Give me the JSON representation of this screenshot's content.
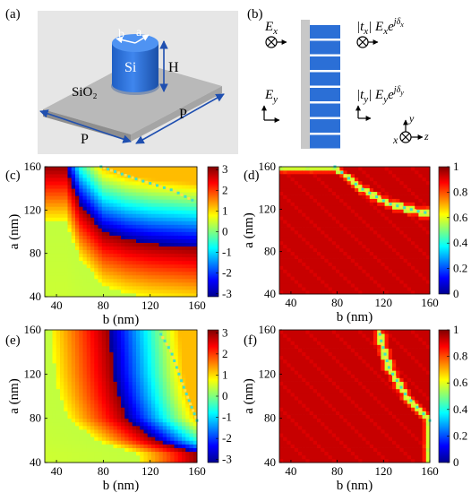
{
  "panels": {
    "a": {
      "label": "(a)",
      "text_b": "b",
      "text_a": "a",
      "text_si": "Si",
      "text_h": "H",
      "text_sio2": "SiO₂",
      "text_p1": "P",
      "text_p2": "P",
      "colors": {
        "substrate_top": "#b8b8b8",
        "substrate_side": "#9a9a9a",
        "pillar": "#2b6fd6",
        "background": "#e6e6e6"
      }
    },
    "b": {
      "label": "(b)",
      "ex": "E",
      "ex_sub": "x",
      "ey": "E",
      "ey_sub": "y",
      "tx": "|t",
      "tx_sub": "x",
      "tx_mid": "| E",
      "tx_mid_sub": "x",
      "tx_exp": "e",
      "tx_power": "jδ",
      "tx_power_sub": "x",
      "ty": "|t",
      "ty_sub": "y",
      "ty_mid": "| E",
      "ty_mid_sub": "y",
      "ty_exp": "e",
      "ty_power": "jδ",
      "ty_power_sub": "y",
      "axis_y": "y",
      "axis_x": "x",
      "axis_z": "z",
      "colors": {
        "slab": "#c8c8c8",
        "pillars": "#2b6fd6"
      }
    },
    "c": {
      "label": "(c)"
    },
    "d": {
      "label": "(d)"
    },
    "e": {
      "label": "(e)"
    },
    "f": {
      "label": "(f)"
    }
  },
  "chart_data": [
    {
      "panel": "c",
      "type": "heatmap",
      "quantity": "phase",
      "xlabel": "b (nm)",
      "ylabel": "a (nm)",
      "xlim": [
        30,
        160
      ],
      "ylim": [
        40,
        160
      ],
      "xticks": [
        40,
        80,
        120,
        160
      ],
      "yticks": [
        40,
        80,
        120,
        160
      ],
      "colorbar_ticks": [
        3,
        2,
        1,
        0,
        -1,
        -2,
        -3
      ],
      "colorbar_range": [
        -3.14,
        3.14
      ],
      "colormap": "jet",
      "phase_jump_curve": {
        "b": [
          48,
          60,
          80,
          100,
          120,
          140,
          160
        ],
        "a": [
          160,
          125,
          100,
          93,
          89,
          87,
          85
        ]
      },
      "resonance_curve": {
        "b": [
          78,
          110,
          140,
          158
        ],
        "a": [
          160,
          148,
          138,
          128
        ]
      }
    },
    {
      "panel": "d",
      "type": "heatmap",
      "quantity": "transmission amplitude",
      "xlabel": "b (nm)",
      "ylabel": "a (nm)",
      "xlim": [
        30,
        160
      ],
      "ylim": [
        40,
        160
      ],
      "xticks": [
        40,
        80,
        120,
        160
      ],
      "yticks": [
        40,
        80,
        120,
        160
      ],
      "colorbar_ticks": [
        1,
        0.8,
        0.6,
        0.4,
        0.2,
        0
      ],
      "colorbar_range": [
        0,
        1
      ],
      "colormap": "jet",
      "background_value": 0.93,
      "resonance_curve": {
        "b": [
          78,
          100,
          125,
          150,
          160
        ],
        "a": [
          160,
          140,
          125,
          118,
          116
        ]
      }
    },
    {
      "panel": "e",
      "type": "heatmap",
      "quantity": "phase",
      "xlabel": "b (nm)",
      "ylabel": "a (nm)",
      "xlim": [
        30,
        160
      ],
      "ylim": [
        40,
        160
      ],
      "xticks": [
        40,
        80,
        120,
        160
      ],
      "yticks": [
        40,
        80,
        120,
        160
      ],
      "colorbar_ticks": [
        3,
        2,
        1,
        0,
        -1,
        -2,
        -3
      ],
      "colorbar_range": [
        -3.14,
        3.14
      ],
      "colormap": "jet",
      "phase_jump_curve": {
        "b": [
          160,
          125,
          100,
          93,
          89,
          87,
          85
        ],
        "a": [
          48,
          60,
          80,
          100,
          120,
          140,
          160
        ]
      },
      "resonance_curve": {
        "a": [
          78,
          110,
          140,
          158
        ],
        "b": [
          160,
          148,
          138,
          128
        ]
      }
    },
    {
      "panel": "f",
      "type": "heatmap",
      "quantity": "transmission amplitude",
      "xlabel": "b (nm)",
      "ylabel": "a (nm)",
      "xlim": [
        30,
        160
      ],
      "ylim": [
        40,
        160
      ],
      "xticks": [
        40,
        80,
        120,
        160
      ],
      "yticks": [
        40,
        80,
        120,
        160
      ],
      "colorbar_ticks": [
        1,
        0.8,
        0.6,
        0.4,
        0.2,
        0
      ],
      "colorbar_range": [
        0,
        1
      ],
      "colormap": "jet",
      "background_value": 0.93,
      "resonance_curve": {
        "a": [
          78,
          100,
          125,
          150,
          160
        ],
        "b": [
          160,
          140,
          125,
          118,
          116
        ]
      }
    }
  ]
}
